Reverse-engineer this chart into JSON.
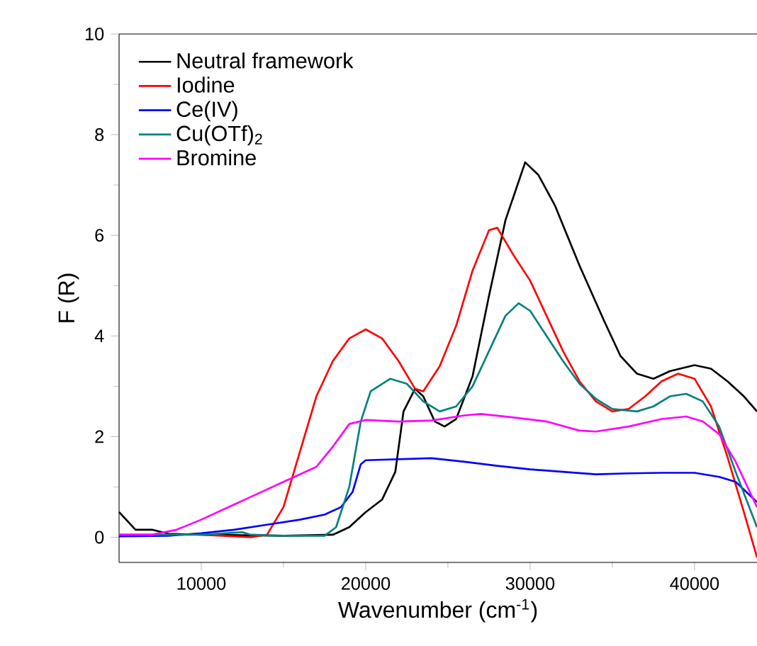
{
  "chart_data": {
    "type": "line",
    "xlabel": "Wavenumber (cm$^{-1}$)",
    "ylabel": "F (R)",
    "xlim": [
      5000,
      43800
    ],
    "ylim": [
      -0.5,
      10
    ],
    "xticks": [
      10000,
      20000,
      30000,
      40000
    ],
    "yticks": [
      0,
      2,
      4,
      6,
      8,
      10
    ],
    "grid": false,
    "legend": "top left",
    "marker": "none",
    "line_style": "solid",
    "series": [
      {
        "name": "Neutral framework",
        "color": "#000000",
        "x": [
          5000,
          6000,
          7000,
          8000,
          10000,
          15000,
          18000,
          19000,
          20000,
          21000,
          21800,
          22300,
          23000,
          23500,
          24200,
          24800,
          25500,
          26500,
          27500,
          28500,
          29700,
          30500,
          31500,
          33000,
          34500,
          35500,
          36500,
          37500,
          38500,
          40000,
          41000,
          42000,
          43000,
          43800
        ],
        "values": [
          0.5,
          0.15,
          0.15,
          0.07,
          0.05,
          0.03,
          0.05,
          0.2,
          0.5,
          0.75,
          1.3,
          2.5,
          2.95,
          2.8,
          2.3,
          2.2,
          2.35,
          3.2,
          4.8,
          6.3,
          7.45,
          7.2,
          6.6,
          5.4,
          4.3,
          3.6,
          3.25,
          3.15,
          3.3,
          3.42,
          3.35,
          3.1,
          2.8,
          2.5
        ]
      },
      {
        "name": "Iodine",
        "color": "#ff0000",
        "x": [
          10000,
          13000,
          14000,
          15000,
          16000,
          17000,
          18000,
          19000,
          20000,
          21000,
          22000,
          23000,
          23500,
          24500,
          25500,
          26500,
          27500,
          28000,
          29000,
          30000,
          31000,
          32000,
          33000,
          34000,
          35000,
          36000,
          37000,
          38000,
          39000,
          40000,
          41000,
          42000,
          43000,
          43800
        ],
        "values": [
          0.05,
          0.0,
          0.05,
          0.6,
          1.7,
          2.8,
          3.5,
          3.95,
          4.13,
          3.95,
          3.5,
          2.95,
          2.9,
          3.4,
          4.2,
          5.3,
          6.1,
          6.15,
          5.6,
          5.1,
          4.4,
          3.7,
          3.1,
          2.7,
          2.5,
          2.55,
          2.8,
          3.1,
          3.25,
          3.15,
          2.6,
          1.6,
          0.5,
          -0.4
        ]
      },
      {
        "name": "Ce(IV)",
        "color": "#0000ff",
        "x": [
          5000,
          8000,
          10000,
          12000,
          14000,
          16000,
          17500,
          18500,
          19200,
          19700,
          20000,
          22000,
          24000,
          26000,
          28000,
          30000,
          32000,
          34000,
          36000,
          38000,
          40000,
          41500,
          42500,
          43800
        ],
        "values": [
          0.02,
          0.03,
          0.08,
          0.15,
          0.25,
          0.35,
          0.45,
          0.6,
          0.9,
          1.45,
          1.53,
          1.55,
          1.57,
          1.5,
          1.42,
          1.35,
          1.3,
          1.25,
          1.27,
          1.28,
          1.28,
          1.2,
          1.1,
          0.7
        ]
      },
      {
        "name": "Cu(OTf)$_{2}$",
        "color": "#008080",
        "x": [
          5000,
          10000,
          12500,
          13000,
          15000,
          17500,
          18200,
          19000,
          19700,
          20300,
          21500,
          22500,
          23500,
          24500,
          25500,
          26500,
          27500,
          28500,
          29300,
          30000,
          31000,
          32000,
          33000,
          34000,
          35000,
          36500,
          37500,
          38500,
          39500,
          40500,
          41500,
          42500,
          43800
        ],
        "values": [
          0.05,
          0.05,
          0.1,
          0.05,
          0.03,
          0.03,
          0.2,
          1.0,
          2.3,
          2.9,
          3.15,
          3.05,
          2.7,
          2.5,
          2.6,
          3.0,
          3.7,
          4.4,
          4.65,
          4.5,
          4.0,
          3.5,
          3.05,
          2.75,
          2.55,
          2.5,
          2.6,
          2.8,
          2.85,
          2.7,
          2.2,
          1.3,
          0.2
        ]
      },
      {
        "name": "Bromine",
        "color": "#ff00ff",
        "x": [
          5000,
          7000,
          8500,
          10000,
          12000,
          13000,
          15000,
          17000,
          18000,
          19000,
          20000,
          22000,
          24000,
          26000,
          27000,
          29000,
          31000,
          33000,
          34000,
          36000,
          38000,
          39500,
          40500,
          41500,
          42500,
          43800
        ],
        "values": [
          0.05,
          0.05,
          0.15,
          0.35,
          0.65,
          0.8,
          1.1,
          1.4,
          1.8,
          2.25,
          2.33,
          2.3,
          2.32,
          2.42,
          2.45,
          2.38,
          2.3,
          2.12,
          2.1,
          2.2,
          2.35,
          2.4,
          2.3,
          2.05,
          1.5,
          0.6
        ]
      }
    ]
  }
}
